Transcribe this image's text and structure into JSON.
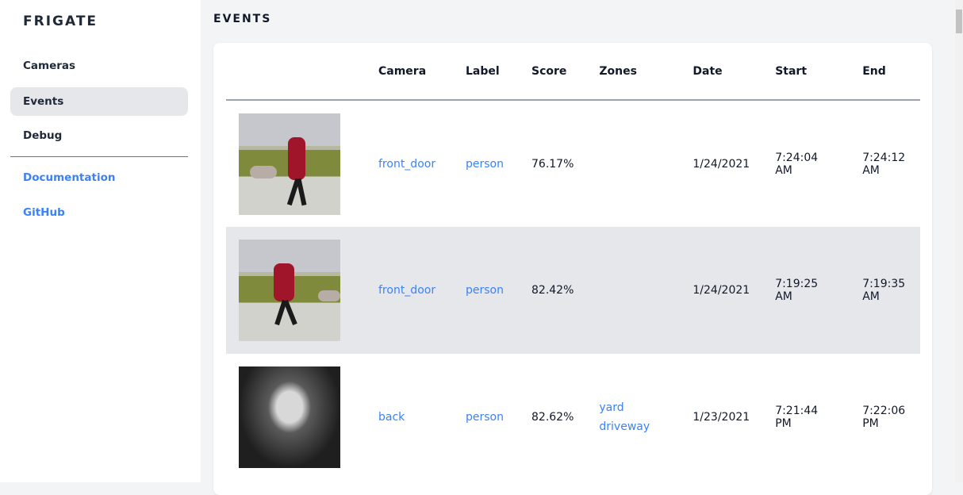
{
  "sidebar": {
    "brand": "FRIGATE",
    "items": [
      {
        "label": "Cameras"
      },
      {
        "label": "Events",
        "active": true
      },
      {
        "label": "Debug"
      }
    ],
    "links": [
      {
        "label": "Documentation"
      },
      {
        "label": "GitHub"
      }
    ]
  },
  "page": {
    "title": "EVENTS"
  },
  "table": {
    "headers": [
      "",
      "Camera",
      "Label",
      "Score",
      "Zones",
      "Date",
      "Start",
      "End"
    ],
    "rows": [
      {
        "camera": "front_door",
        "label": "person",
        "score": "76.17%",
        "zones": [
          "",
          ""
        ],
        "date": "1/24/2021",
        "start": "7:24:04 AM",
        "end": "7:24:12 AM"
      },
      {
        "camera": "front_door",
        "label": "person",
        "score": "82.42%",
        "zones": [
          "",
          ""
        ],
        "date": "1/24/2021",
        "start": "7:19:25 AM",
        "end": "7:19:35 AM"
      },
      {
        "camera": "back",
        "label": "person",
        "score": "82.62%",
        "zones": [
          "yard",
          "driveway"
        ],
        "date": "1/23/2021",
        "start": "7:21:44 PM",
        "end": "7:22:06 PM"
      }
    ]
  },
  "colors": {
    "link": "#3b82f6",
    "active_bg": "#e5e7eb",
    "page_bg": "#f3f4f6"
  }
}
